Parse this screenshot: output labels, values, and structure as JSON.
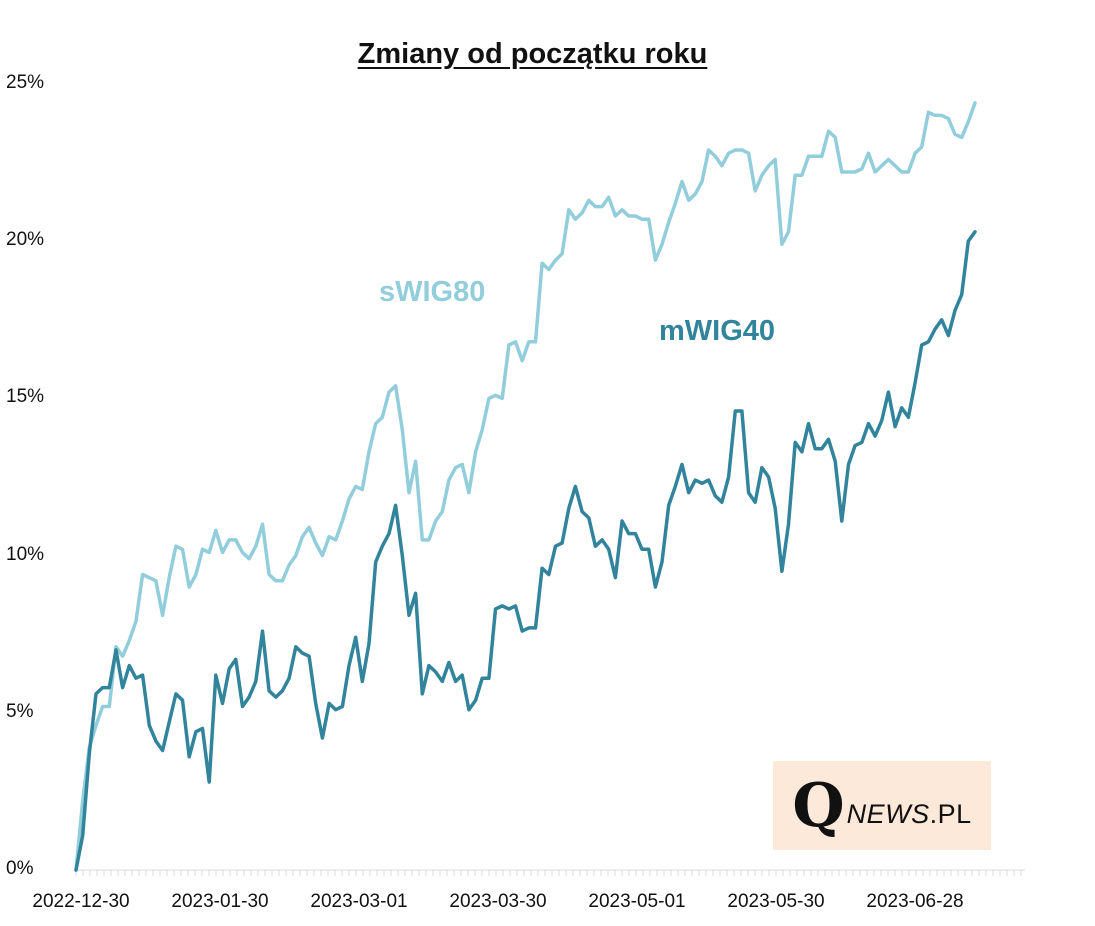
{
  "chart_data": {
    "type": "line",
    "title": "Zmiany od początku roku",
    "xlabel": "",
    "ylabel": "",
    "ylim": [
      0,
      25
    ],
    "y_ticks": [
      "0%",
      "5%",
      "10%",
      "15%",
      "20%",
      "25%"
    ],
    "x_ticks": [
      "2022-12-30",
      "2023-01-30",
      "2023-03-01",
      "2023-03-30",
      "2023-05-01",
      "2023-05-30",
      "2023-06-28"
    ],
    "grid": false,
    "legend": "inline labels",
    "series": [
      {
        "name": "sWIG80",
        "color": "#92cddc",
        "values": [
          0,
          2.2,
          3.9,
          4.6,
          5.2,
          5.2,
          7.1,
          6.8,
          7.3,
          7.9,
          9.4,
          9.3,
          9.2,
          8.1,
          9.3,
          10.3,
          10.2,
          9.0,
          9.4,
          10.2,
          10.1,
          10.8,
          10.1,
          10.5,
          10.5,
          10.1,
          9.9,
          10.3,
          11.0,
          9.4,
          9.2,
          9.2,
          9.7,
          10.0,
          10.6,
          10.9,
          10.4,
          10.0,
          10.6,
          10.5,
          11.1,
          11.8,
          12.2,
          12.1,
          13.3,
          14.2,
          14.4,
          15.2,
          15.4,
          14.0,
          12.0,
          13.0,
          10.5,
          10.5,
          11.1,
          11.4,
          12.4,
          12.8,
          12.9,
          12.0,
          13.3,
          14.0,
          15.0,
          15.1,
          15.0,
          16.7,
          16.8,
          16.2,
          16.8,
          16.8,
          19.3,
          19.1,
          19.4,
          19.6,
          21.0,
          20.7,
          20.9,
          21.3,
          21.1,
          21.1,
          21.4,
          20.8,
          21.0,
          20.8,
          20.8,
          20.7,
          20.7,
          19.4,
          19.9,
          20.6,
          21.2,
          21.9,
          21.3,
          21.5,
          21.9,
          22.9,
          22.7,
          22.4,
          22.8,
          22.9,
          22.9,
          22.8,
          21.6,
          22.1,
          22.4,
          22.6,
          19.9,
          20.3,
          22.1,
          22.1,
          22.7,
          22.7,
          22.7,
          23.5,
          23.3,
          22.2,
          22.2,
          22.2,
          22.3,
          22.8,
          22.2,
          22.4,
          22.6,
          22.4,
          22.2,
          22.2,
          22.8,
          23.0,
          24.1,
          24.0,
          24.0,
          23.9,
          23.4,
          23.3,
          23.8,
          24.4
        ]
      },
      {
        "name": "mWIG40",
        "color": "#31849b",
        "values": [
          0,
          1.1,
          3.7,
          5.6,
          5.8,
          5.8,
          7.0,
          5.8,
          6.5,
          6.1,
          6.2,
          4.6,
          4.1,
          3.8,
          4.7,
          5.6,
          5.4,
          3.6,
          4.4,
          4.5,
          2.8,
          6.2,
          5.3,
          6.4,
          6.7,
          5.2,
          5.5,
          6.0,
          7.6,
          5.7,
          5.5,
          5.7,
          6.1,
          7.1,
          6.9,
          6.8,
          5.3,
          4.2,
          5.3,
          5.1,
          5.2,
          6.5,
          7.4,
          6.0,
          7.2,
          9.8,
          10.3,
          10.7,
          11.6,
          10.0,
          8.1,
          8.8,
          5.6,
          6.5,
          6.3,
          6.0,
          6.6,
          6.0,
          6.2,
          5.1,
          5.4,
          6.1,
          6.1,
          8.3,
          8.4,
          8.3,
          8.4,
          7.6,
          7.7,
          7.7,
          9.6,
          9.4,
          10.3,
          10.4,
          11.5,
          12.2,
          11.4,
          11.2,
          10.3,
          10.5,
          10.2,
          9.3,
          11.1,
          10.7,
          10.7,
          10.2,
          10.2,
          9.0,
          9.8,
          11.6,
          12.2,
          12.9,
          12.0,
          12.4,
          12.3,
          12.4,
          11.9,
          11.7,
          12.5,
          14.6,
          14.6,
          12.0,
          11.7,
          12.8,
          12.5,
          11.5,
          9.5,
          11.0,
          13.6,
          13.3,
          14.2,
          13.4,
          13.4,
          13.7,
          13.0,
          11.1,
          12.9,
          13.5,
          13.6,
          14.2,
          13.8,
          14.3,
          15.2,
          14.1,
          14.7,
          14.4,
          15.5,
          16.7,
          16.8,
          17.2,
          17.5,
          17.0,
          17.8,
          18.3,
          20.0,
          20.3
        ]
      }
    ]
  },
  "logo": {
    "q": "Q",
    "news": "NEWS",
    "dot_pl": ".PL",
    "background": "#fde9d9"
  }
}
